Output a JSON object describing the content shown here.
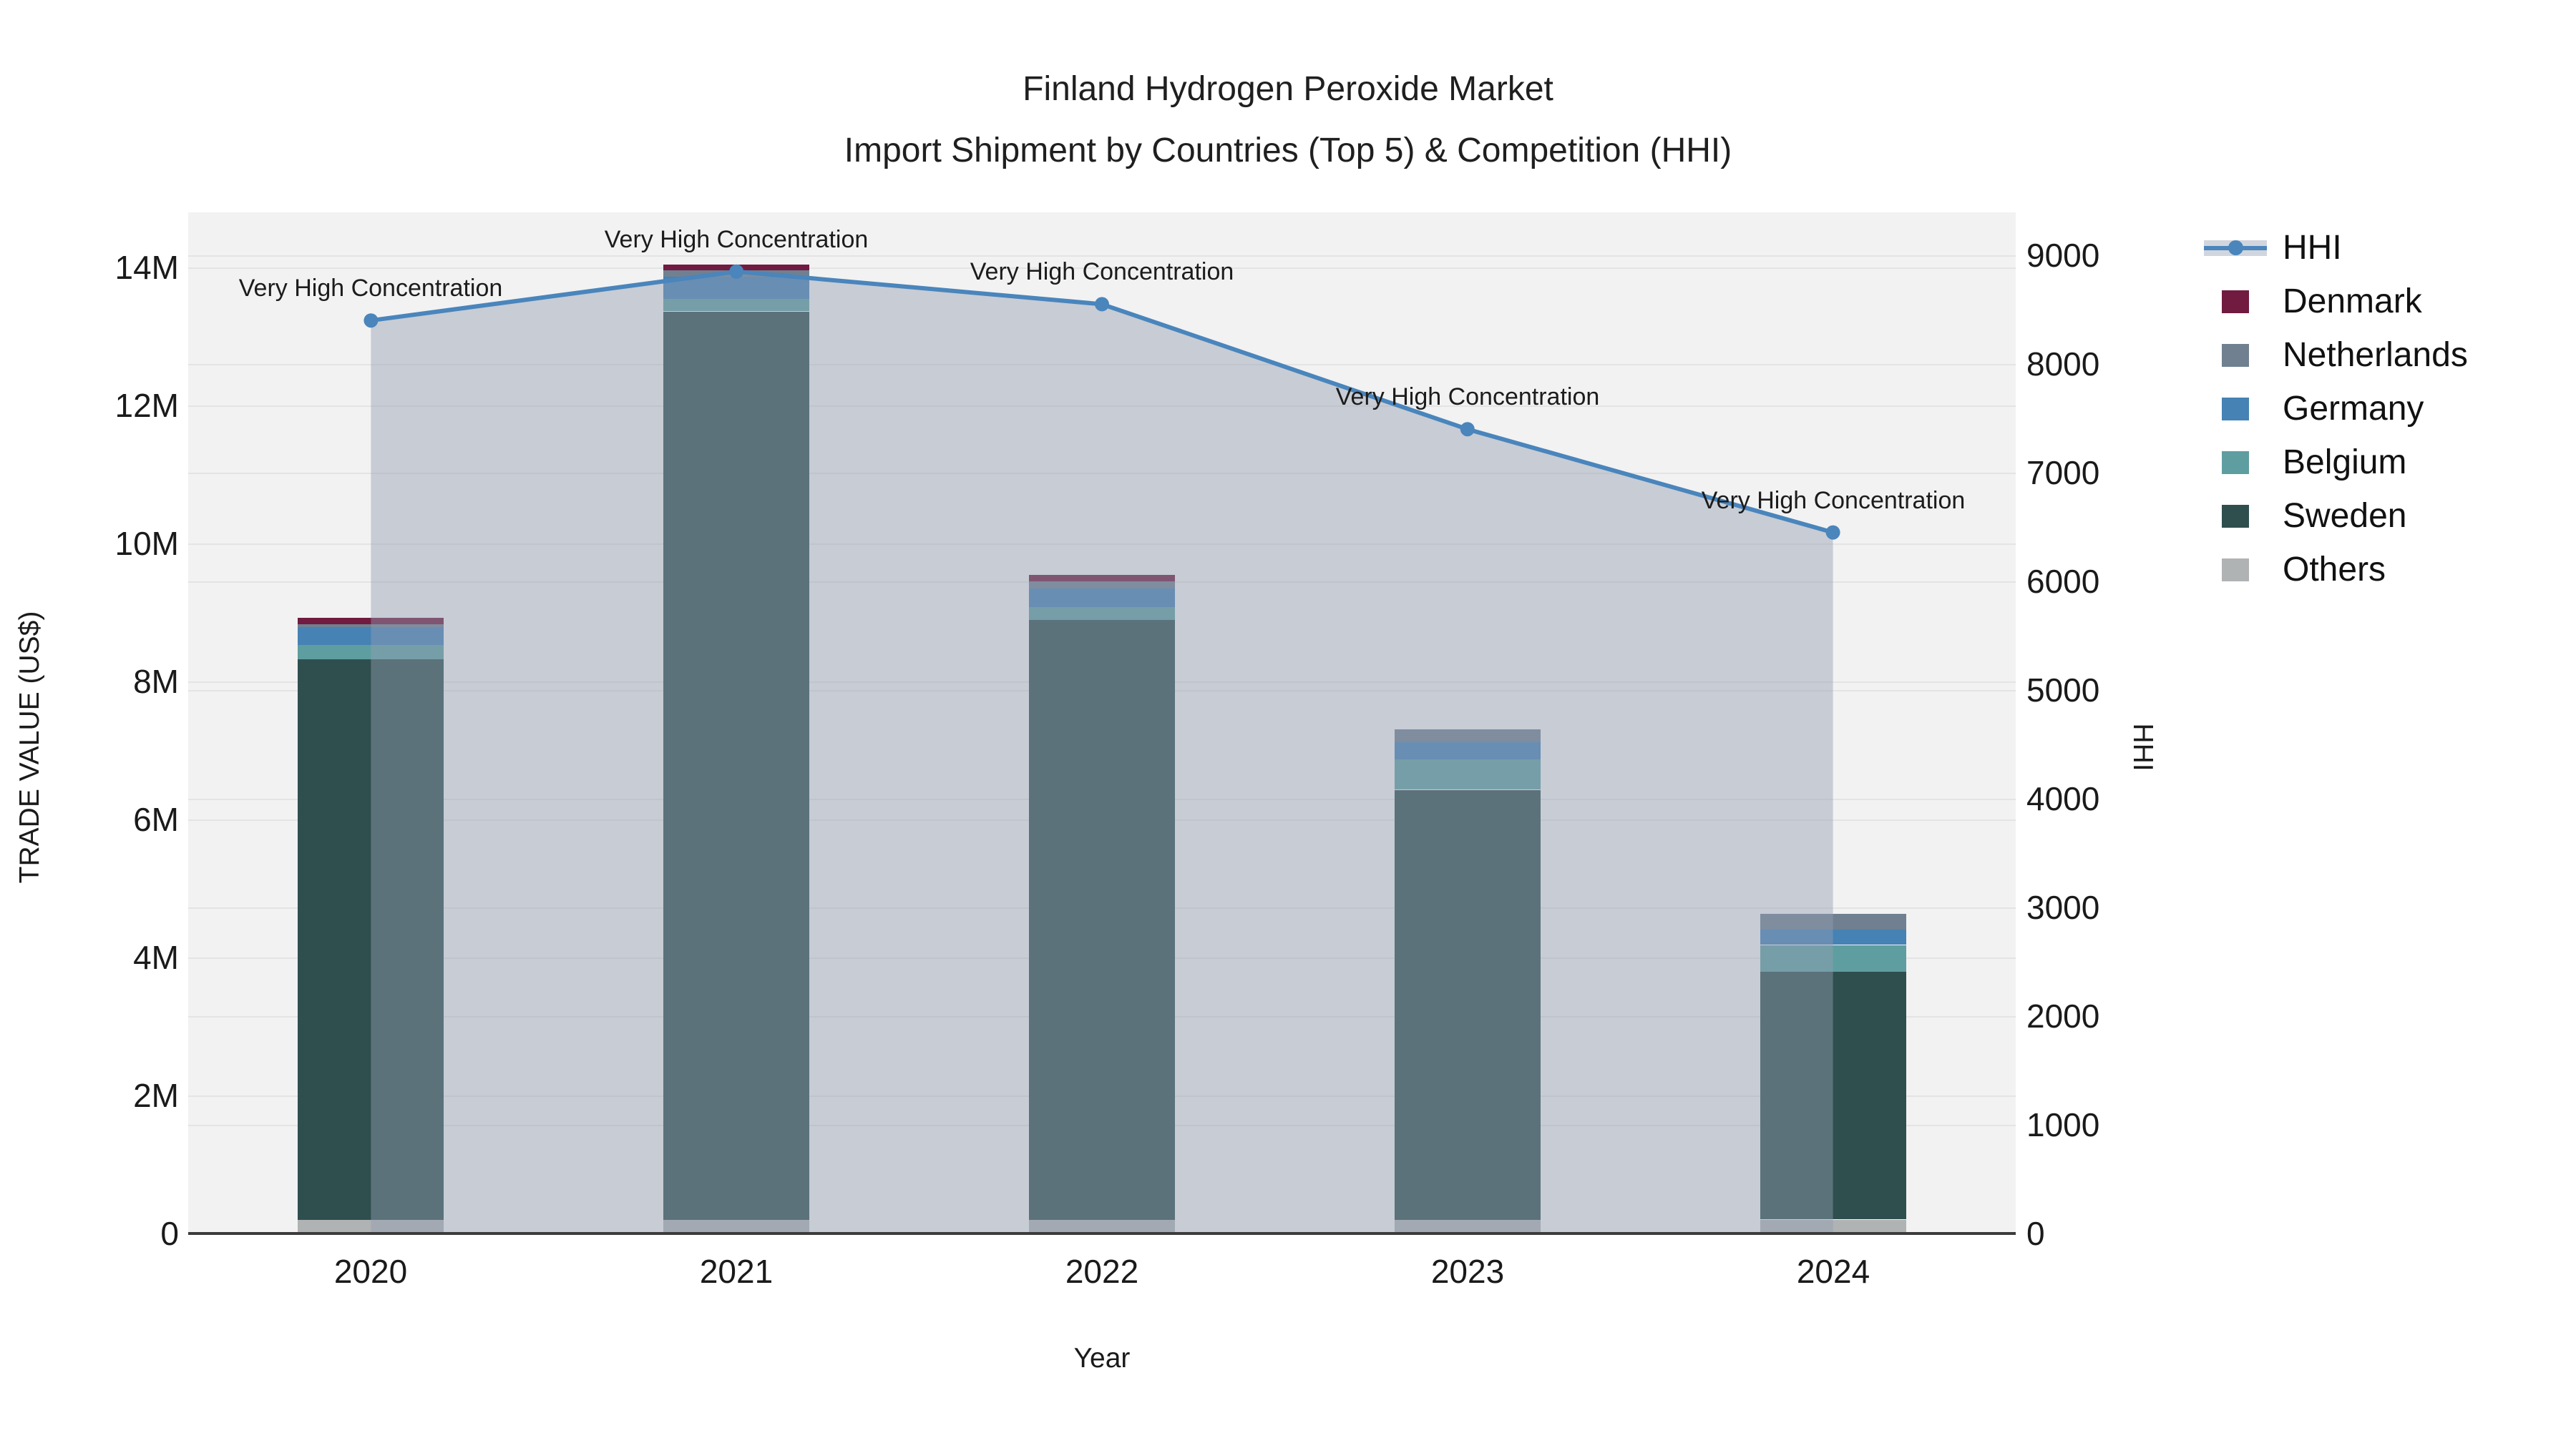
{
  "title": {
    "line1": "Finland Hydrogen Peroxide Market",
    "line2": "Import Shipment by Countries (Top 5) & Competition (HHI)"
  },
  "axes": {
    "x": {
      "title": "Year",
      "categories": [
        "2020",
        "2021",
        "2022",
        "2023",
        "2024"
      ]
    },
    "y_left": {
      "title": "TRADE VALUE (US$)",
      "tick_labels": [
        "0",
        "2M",
        "4M",
        "6M",
        "8M",
        "10M",
        "12M",
        "14M"
      ],
      "tick_values": [
        0,
        2000000,
        4000000,
        6000000,
        8000000,
        10000000,
        12000000,
        14000000
      ],
      "range": [
        0,
        14000000
      ]
    },
    "y_right": {
      "title": "HHI",
      "tick_labels": [
        "0",
        "1000",
        "2000",
        "3000",
        "4000",
        "5000",
        "6000",
        "7000",
        "8000",
        "9000"
      ],
      "tick_values": [
        0,
        1000,
        2000,
        3000,
        4000,
        5000,
        6000,
        7000,
        8000,
        9000
      ],
      "range": [
        0,
        9000
      ]
    }
  },
  "legend": {
    "items": [
      {
        "label": "HHI",
        "type": "line",
        "color": "#4a85bc",
        "band_color": "#d1d5dd"
      },
      {
        "label": "Denmark",
        "type": "swatch",
        "color": "#701b3f"
      },
      {
        "label": "Netherlands",
        "type": "swatch",
        "color": "#708090"
      },
      {
        "label": "Germany",
        "type": "swatch",
        "color": "#4682b4"
      },
      {
        "label": "Belgium",
        "type": "swatch",
        "color": "#5f9ea0"
      },
      {
        "label": "Sweden",
        "type": "swatch",
        "color": "#2f4f4f"
      },
      {
        "label": "Others",
        "type": "swatch",
        "color": "#b0b3b3"
      }
    ]
  },
  "annotations": [
    {
      "text": "Very High Concentration",
      "year": "2020"
    },
    {
      "text": "Very High Concentration",
      "year": "2021"
    },
    {
      "text": "Very High Concentration",
      "year": "2022"
    },
    {
      "text": "Very High Concentration",
      "year": "2023"
    },
    {
      "text": "Very High Concentration",
      "year": "2024"
    }
  ],
  "chart_data": {
    "type": "stacked-bar+line",
    "categories": [
      "2020",
      "2021",
      "2022",
      "2023",
      "2024"
    ],
    "bar_value_unit": "US$",
    "stack_order_bottom_to_top": [
      "Others",
      "Sweden",
      "Belgium",
      "Germany",
      "Netherlands",
      "Denmark"
    ],
    "series": [
      {
        "name": "Denmark",
        "color": "#701b3f",
        "values": [
          90000,
          80000,
          90000,
          0,
          0
        ]
      },
      {
        "name": "Netherlands",
        "color": "#708090",
        "values": [
          40000,
          90000,
          100000,
          190000,
          230000
        ]
      },
      {
        "name": "Germany",
        "color": "#4682b4",
        "values": [
          260000,
          320000,
          270000,
          250000,
          220000
        ]
      },
      {
        "name": "Belgium",
        "color": "#5f9ea0",
        "values": [
          210000,
          190000,
          190000,
          440000,
          380000
        ]
      },
      {
        "name": "Sweden",
        "color": "#2f4f4f",
        "values": [
          8120000,
          13160000,
          8690000,
          6230000,
          3600000
        ]
      },
      {
        "name": "Others",
        "color": "#b0b3b3",
        "values": [
          200000,
          200000,
          200000,
          200000,
          200000
        ]
      }
    ],
    "line_series": {
      "name": "HHI",
      "color": "#4a85bc",
      "area_fill": "rgba(146,158,178,0.45)",
      "values": [
        8400,
        8850,
        8550,
        7400,
        6450
      ]
    },
    "y_left_range": [
      0,
      14000000
    ],
    "y_right_range": [
      0,
      9000
    ],
    "grid": true,
    "legend_position": "right"
  },
  "colors": {
    "plot_bg": "#f2f2f2",
    "grid": "#e4e4e4",
    "axis_line": "#3c3c3c",
    "text": "#1a1a1a"
  }
}
